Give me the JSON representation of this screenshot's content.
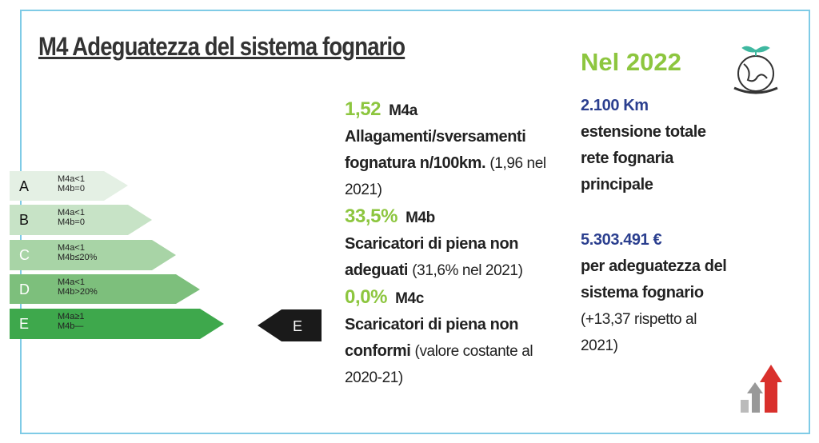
{
  "header": {
    "title": "M4 Adeguatezza del sistema fognario"
  },
  "classes": [
    {
      "letter": "A",
      "lines": [
        "M4a<1",
        "M4b=0"
      ]
    },
    {
      "letter": "B",
      "lines": [
        "M4a<1",
        "M4b=0"
      ]
    },
    {
      "letter": "C",
      "lines": [
        "M4a<1",
        "M4b≤20%"
      ]
    },
    {
      "letter": "D",
      "lines": [
        "M4a<1",
        "M4b>20%"
      ]
    },
    {
      "letter": "E",
      "lines": [
        "M4a≥1",
        "M4b—"
      ]
    }
  ],
  "indicator": "E",
  "metrics": [
    {
      "value": "1,52",
      "code": "M4a",
      "description": "Allagamenti/sversamenti fognatura n/100km.",
      "note": "(1,96 nel 2021)"
    },
    {
      "value": "33,5%",
      "code": "M4b",
      "description": "Scaricatori di piena non adeguati",
      "note": "(31,6% nel 2021)"
    },
    {
      "value": "0,0%",
      "code": "M4c",
      "description": "Scaricatori di piena non conformi",
      "note": "(valore costante al 2020-21)"
    }
  ],
  "year_title": "Nel 2022",
  "facts": [
    {
      "value": "2.100 Km",
      "description": "estensione totale rete fognaria principale"
    },
    {
      "value": "5.303.491 €",
      "description": "per adeguatezza del sistema fognario",
      "note": "(+13,37 rispetto al 2021)"
    }
  ]
}
